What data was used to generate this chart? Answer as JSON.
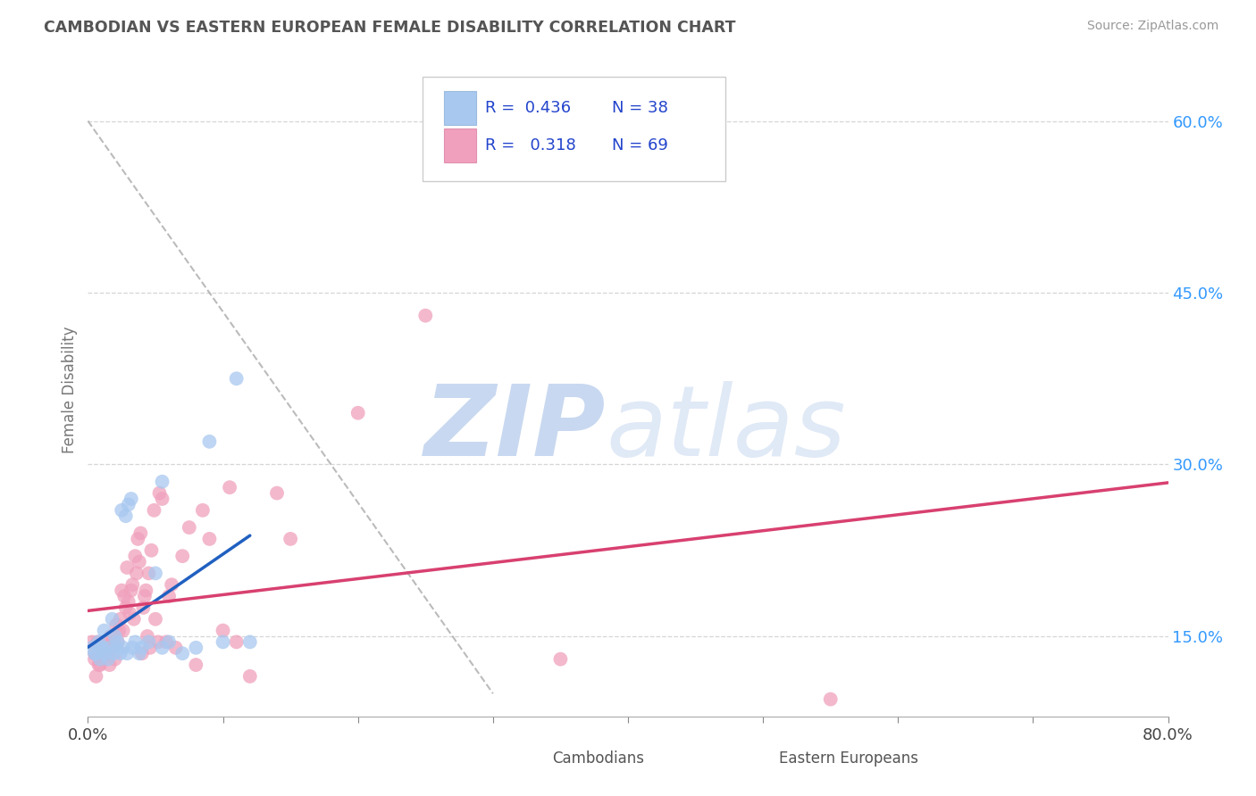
{
  "title": "CAMBODIAN VS EASTERN EUROPEAN FEMALE DISABILITY CORRELATION CHART",
  "source": "Source: ZipAtlas.com",
  "ylabel_label": "Female Disability",
  "right_yticks": [
    15.0,
    30.0,
    45.0,
    60.0
  ],
  "xlim": [
    0.0,
    80.0
  ],
  "ylim": [
    8.0,
    65.0
  ],
  "cambodian_R": 0.436,
  "cambodian_N": 38,
  "eastern_R": 0.318,
  "eastern_N": 69,
  "cambodian_color": "#A8C8F0",
  "eastern_color": "#F0A0BC",
  "cambodian_trend_color": "#2060C0",
  "eastern_trend_color": "#D84070",
  "background_color": "#FFFFFF",
  "grid_color": "#CCCCCC",
  "watermark_zip_color": "#C8D8F0",
  "watermark_atlas_color": "#C8D8F0",
  "legend_color": "#2244CC",
  "cambodians_x": [
    0.5,
    0.8,
    1.0,
    1.2,
    1.5,
    1.8,
    2.0,
    2.2,
    2.5,
    2.8,
    3.0,
    3.2,
    3.5,
    3.8,
    4.0,
    4.5,
    5.0,
    5.5,
    6.0,
    7.0,
    8.0,
    9.0,
    10.0,
    11.0,
    12.0,
    0.3,
    0.6,
    0.9,
    1.1,
    1.3,
    1.6,
    1.9,
    2.1,
    2.4,
    2.6,
    2.9,
    3.3,
    5.5
  ],
  "cambodians_y": [
    13.5,
    14.5,
    14.0,
    15.5,
    13.0,
    16.5,
    15.0,
    14.5,
    26.0,
    25.5,
    26.5,
    27.0,
    14.5,
    13.5,
    14.0,
    14.5,
    20.5,
    28.5,
    14.5,
    13.5,
    14.0,
    32.0,
    14.5,
    37.5,
    14.5,
    14.0,
    13.5,
    13.0,
    14.0,
    13.5,
    14.0,
    13.5,
    14.0,
    13.5,
    14.0,
    13.5,
    14.0,
    14.0
  ],
  "eastern_x": [
    0.5,
    0.7,
    0.9,
    1.1,
    1.3,
    1.5,
    1.7,
    1.9,
    2.1,
    2.3,
    2.5,
    2.7,
    2.9,
    3.1,
    3.3,
    3.5,
    3.7,
    3.9,
    4.1,
    4.3,
    4.5,
    4.7,
    4.9,
    5.2,
    5.5,
    5.8,
    6.0,
    6.5,
    7.0,
    8.0,
    9.0,
    10.0,
    11.0,
    12.0,
    14.0,
    15.0,
    20.0,
    25.0,
    55.0,
    0.3,
    0.5,
    0.6,
    0.8,
    1.0,
    1.2,
    1.4,
    1.6,
    1.8,
    2.0,
    2.2,
    2.4,
    2.6,
    2.8,
    3.0,
    3.2,
    3.4,
    3.6,
    3.8,
    4.0,
    4.2,
    4.4,
    4.6,
    5.0,
    5.3,
    6.2,
    7.5,
    8.5,
    10.5,
    35.0
  ],
  "eastern_y": [
    13.0,
    14.5,
    12.5,
    13.5,
    14.0,
    13.5,
    15.0,
    14.5,
    16.0,
    15.5,
    19.0,
    18.5,
    21.0,
    17.0,
    19.5,
    22.0,
    23.5,
    24.0,
    17.5,
    19.0,
    20.5,
    22.5,
    26.0,
    14.5,
    27.0,
    14.5,
    18.5,
    14.0,
    22.0,
    12.5,
    23.5,
    15.5,
    14.5,
    11.5,
    27.5,
    23.5,
    34.5,
    43.0,
    9.5,
    14.5,
    13.5,
    11.5,
    12.5,
    13.0,
    14.5,
    13.5,
    12.5,
    14.0,
    13.0,
    14.5,
    16.5,
    15.5,
    17.5,
    18.0,
    19.0,
    16.5,
    20.5,
    21.5,
    13.5,
    18.5,
    15.0,
    14.0,
    16.5,
    27.5,
    19.5,
    24.5,
    26.0,
    28.0,
    13.0
  ],
  "xtick_positions": [
    0,
    10,
    20,
    30,
    40,
    50,
    60,
    70,
    80
  ],
  "xtick_labels_show": [
    "0.0%",
    "",
    "",
    "",
    "",
    "",
    "",
    "",
    "80.0%"
  ]
}
